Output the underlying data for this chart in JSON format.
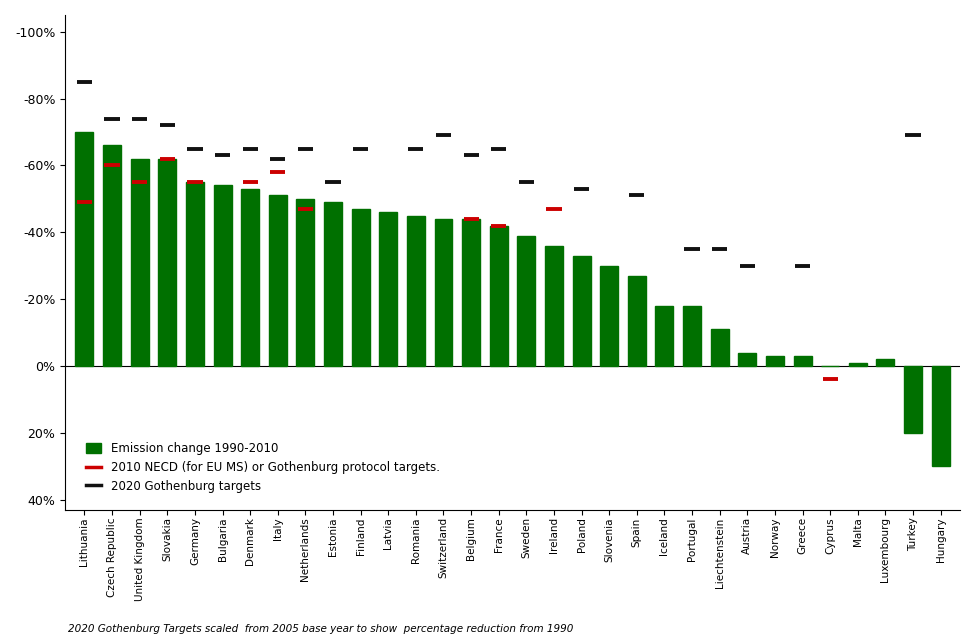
{
  "countries": [
    "Lithuania",
    "Czech Republic",
    "United Kingdom",
    "Slovakia",
    "Germany",
    "Bulgaria",
    "Denmark",
    "Italy",
    "Netherlands",
    "Estonia",
    "Finland",
    "Latvia",
    "Romania",
    "Switzerland",
    "Belgium",
    "France",
    "Sweden",
    "Ireland",
    "Poland",
    "Slovenia",
    "Spain",
    "Iceland",
    "Portugal",
    "Liechtenstein",
    "Austria",
    "Norway",
    "Greece",
    "Cyprus",
    "Malta",
    "Luxembourg",
    "Turkey",
    "Hungary"
  ],
  "emission_change": [
    -70,
    -66,
    -62,
    -62,
    -55,
    -54,
    -53,
    -51,
    -50,
    -49,
    -47,
    -46,
    -45,
    -44,
    -44,
    -42,
    -39,
    -36,
    -33,
    -30,
    -27,
    -18,
    -18,
    -11,
    -4,
    -3,
    -3,
    0,
    -1,
    -2,
    20,
    30
  ],
  "necd_targets": [
    -49,
    -60,
    -55,
    -62,
    -55,
    null,
    -55,
    -58,
    -47,
    null,
    null,
    null,
    null,
    null,
    -44,
    -42,
    null,
    -47,
    null,
    null,
    null,
    null,
    null,
    null,
    null,
    null,
    null,
    4,
    null,
    null,
    null,
    null
  ],
  "gothenburg_targets": [
    -85,
    -74,
    -74,
    -72,
    -65,
    -63,
    -65,
    -62,
    -65,
    -55,
    -65,
    null,
    -65,
    -69,
    -63,
    -65,
    -55,
    null,
    -53,
    null,
    -51,
    null,
    -35,
    -35,
    -30,
    null,
    -30,
    null,
    null,
    null,
    -69,
    null
  ],
  "bar_color": "#007000",
  "necd_color": "#cc0000",
  "gothenburg_color": "#111111",
  "ylim_min": -105,
  "ylim_max": 43,
  "yticks": [
    -100,
    -80,
    -60,
    -40,
    -20,
    0,
    20,
    40
  ],
  "legend_labels": [
    "Emission change 1990-2010",
    "2010 NECD (for EU MS) or Gothenburg protocol targets.",
    "2020 Gothenburg targets"
  ],
  "footnote": "2020 Gothenburg Targets scaled  from 2005 base year to show  percentage reduction from 1990"
}
